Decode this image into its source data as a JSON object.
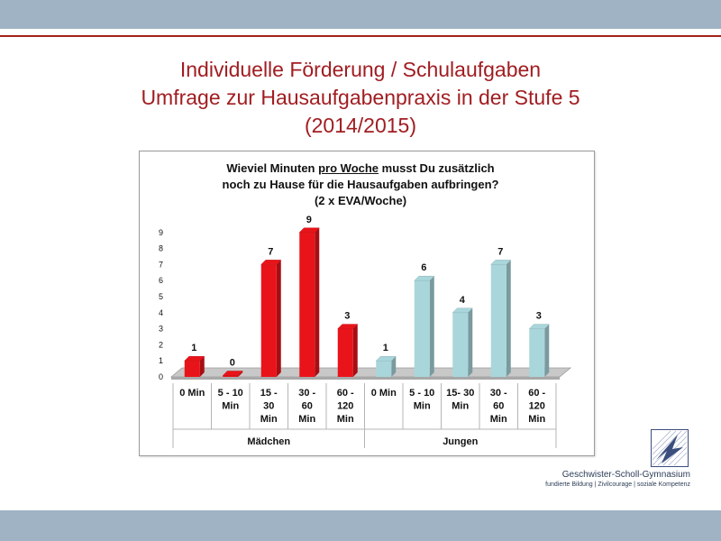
{
  "slide": {
    "title_line1": "Individuelle Förderung / Schulaufgaben",
    "title_line2": "Umfrage zur Hausaufgabenpraxis in der Stufe 5",
    "title_line3": "(2014/2015)"
  },
  "chart_data": {
    "type": "bar",
    "title_line1_pre": "Wieviel Minuten ",
    "title_line1_underlined": "pro Woche",
    "title_line1_post": " musst Du zusätzlich",
    "title_line2": "noch zu Hause für die Hausaufgaben aufbringen?",
    "title_line3": "(2 x EVA/Woche)",
    "ylim": [
      0,
      9
    ],
    "yticks": [
      "0",
      "1",
      "2",
      "3",
      "4",
      "5",
      "6",
      "7",
      "8",
      "9"
    ],
    "groups": [
      {
        "name": "Mädchen",
        "color": "#e8141a",
        "categories": [
          "0 Min",
          "5 - 10 Min",
          "15 - 30 Min",
          "30 - 60 Min",
          "60 - 120 Min"
        ],
        "values": [
          1,
          0,
          7,
          9,
          3
        ]
      },
      {
        "name": "Jungen",
        "color": "#a9d6db",
        "categories": [
          "0 Min",
          "5 - 10 Min",
          "15- 30 Min",
          "30 - 60 Min",
          "60 - 120 Min"
        ],
        "values": [
          1,
          6,
          4,
          7,
          3
        ]
      }
    ],
    "category_lines": [
      [
        "0 Min"
      ],
      [
        "5 - 10",
        "Min"
      ],
      [
        "15 -",
        "30",
        "Min"
      ],
      [
        "30 -",
        "60",
        "Min"
      ],
      [
        "60 -",
        "120",
        "Min"
      ],
      [
        "0 Min"
      ],
      [
        "5 - 10",
        "Min"
      ],
      [
        "15- 30",
        "Min"
      ],
      [
        "30 -",
        "60",
        "Min"
      ],
      [
        "60 -",
        "120",
        "Min"
      ]
    ],
    "grid": false,
    "legend": "none"
  },
  "logo": {
    "name": "Geschwister-Scholl-Gymnasium",
    "motto": "fundierte Bildung | Zivilcourage | soziale Kompetenz"
  }
}
